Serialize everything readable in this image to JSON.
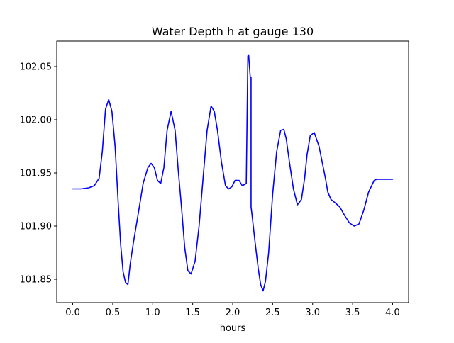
{
  "chart_data": {
    "type": "line",
    "title": "Water Depth h at gauge 130",
    "xlabel": "hours",
    "ylabel": "",
    "xlim": [
      -0.2,
      4.2
    ],
    "ylim": [
      101.828,
      102.074
    ],
    "xticks": [
      0.0,
      0.5,
      1.0,
      1.5,
      2.0,
      2.5,
      3.0,
      3.5,
      4.0
    ],
    "xtick_labels": [
      "0.0",
      "0.5",
      "1.0",
      "1.5",
      "2.0",
      "2.5",
      "3.0",
      "3.5",
      "4.0"
    ],
    "yticks": [
      101.85,
      101.9,
      101.95,
      102.0,
      102.05
    ],
    "ytick_labels": [
      "101.85",
      "101.90",
      "101.95",
      "102.00",
      "102.05"
    ],
    "grid": false,
    "series": [
      {
        "color": "#0000ff",
        "x": [
          0.0,
          0.1,
          0.2,
          0.27,
          0.33,
          0.37,
          0.41,
          0.45,
          0.49,
          0.53,
          0.57,
          0.6,
          0.63,
          0.66,
          0.69,
          0.72,
          0.76,
          0.82,
          0.88,
          0.94,
          0.98,
          1.02,
          1.06,
          1.1,
          1.14,
          1.18,
          1.23,
          1.28,
          1.32,
          1.36,
          1.4,
          1.44,
          1.48,
          1.53,
          1.58,
          1.63,
          1.68,
          1.73,
          1.77,
          1.81,
          1.86,
          1.91,
          1.95,
          1.99,
          2.03,
          2.08,
          2.12,
          2.17,
          2.19,
          2.2,
          2.21,
          2.22,
          2.23,
          2.23,
          2.24,
          2.24,
          2.28,
          2.32,
          2.35,
          2.38,
          2.41,
          2.45,
          2.5,
          2.55,
          2.6,
          2.64,
          2.67,
          2.71,
          2.76,
          2.81,
          2.86,
          2.9,
          2.93,
          2.97,
          3.02,
          3.08,
          3.12,
          3.16,
          3.19,
          3.23,
          3.28,
          3.34,
          3.4,
          3.46,
          3.52,
          3.58,
          3.64,
          3.7,
          3.77,
          3.8,
          3.85,
          3.9,
          3.95,
          4.0
        ],
        "y": [
          101.935,
          101.935,
          101.936,
          101.938,
          101.945,
          101.97,
          102.01,
          102.019,
          102.008,
          101.975,
          101.92,
          101.882,
          101.857,
          101.847,
          101.845,
          101.865,
          101.885,
          101.912,
          101.94,
          101.955,
          101.959,
          101.955,
          101.943,
          101.94,
          101.955,
          101.99,
          102.008,
          101.99,
          101.952,
          101.918,
          101.88,
          101.858,
          101.855,
          101.867,
          101.9,
          101.945,
          101.99,
          102.013,
          102.008,
          101.99,
          101.96,
          101.938,
          101.935,
          101.937,
          101.943,
          101.943,
          101.938,
          101.94,
          102.06,
          102.061,
          102.05,
          102.04,
          102.04,
          101.918,
          101.912,
          101.912,
          101.885,
          101.86,
          101.845,
          101.839,
          101.848,
          101.875,
          101.93,
          101.97,
          101.99,
          101.991,
          101.982,
          101.96,
          101.935,
          101.92,
          101.925,
          101.945,
          101.967,
          101.985,
          101.988,
          101.975,
          101.96,
          101.945,
          101.932,
          101.925,
          101.922,
          101.918,
          101.91,
          101.903,
          101.9,
          101.902,
          101.915,
          101.932,
          101.943,
          101.944,
          101.944,
          101.944,
          101.944,
          101.944
        ]
      }
    ]
  }
}
